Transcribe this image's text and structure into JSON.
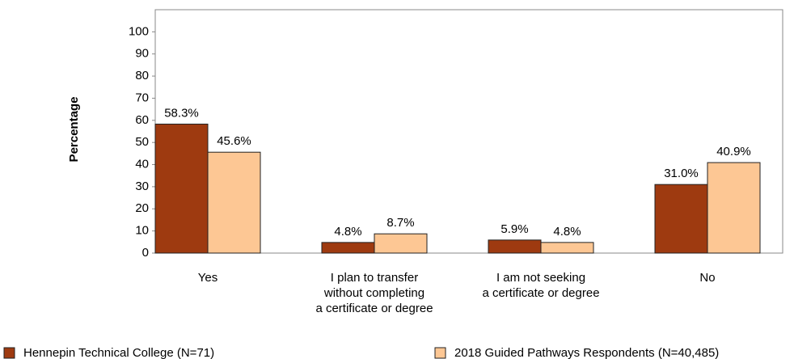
{
  "chart_data": {
    "type": "bar",
    "y_label": "Percentage",
    "categories": [
      "Yes",
      "I plan to transfer\nwithout completing\na certificate or degree",
      "I am not seeking\na certificate or degree",
      "No"
    ],
    "series": [
      {
        "name": "Hennepin Technical College (N=71)",
        "color": "#9e3a10",
        "values": [
          58.3,
          4.8,
          5.9,
          31.0
        ],
        "value_labels": [
          "58.3%",
          "4.8%",
          "5.9%",
          "31.0%"
        ]
      },
      {
        "name": "2018 Guided Pathways Respondents (N=40,485)",
        "color": "#fdc794",
        "values": [
          45.6,
          8.7,
          4.8,
          40.9
        ],
        "value_labels": [
          "45.6%",
          "8.7%",
          "4.8%",
          "40.9%"
        ]
      }
    ],
    "ylim": [
      0,
      110
    ],
    "yticks": [
      0,
      10,
      20,
      30,
      40,
      50,
      60,
      70,
      80,
      90,
      100
    ]
  }
}
